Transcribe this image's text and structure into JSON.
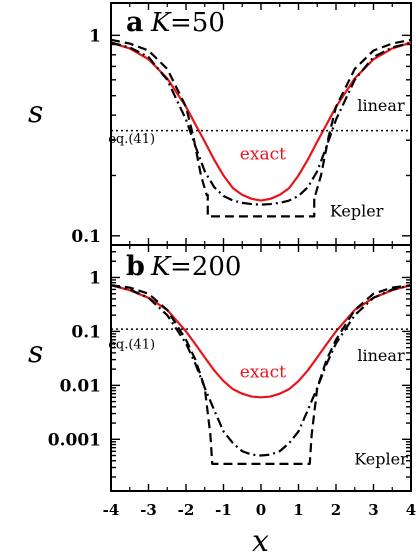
{
  "chart_data": [
    {
      "type": "line",
      "panel_letter": "a",
      "panel_k_var": "K",
      "panel_k_value": "=50",
      "xlabel": "x",
      "ylabel": "s",
      "y_scale": "log",
      "xlim": [
        -4,
        4
      ],
      "ylim": [
        0.09,
        1.45
      ],
      "yticks": [
        {
          "value": 1,
          "label": "1"
        },
        {
          "value": 0.1,
          "label": "0.1"
        }
      ],
      "series": [
        {
          "name": "exact",
          "color": "#e8141b",
          "style": "solid",
          "x": [
            -4,
            -3.5,
            -3,
            -2.5,
            -2,
            -1.75,
            -1.5,
            -1.25,
            -1,
            -0.75,
            -0.5,
            -0.25,
            0,
            0.25,
            0.5,
            0.75,
            1,
            1.25,
            1.5,
            1.75,
            2,
            2.5,
            3,
            3.5,
            4
          ],
          "y": [
            0.92,
            0.86,
            0.76,
            0.61,
            0.44,
            0.36,
            0.295,
            0.24,
            0.2,
            0.173,
            0.16,
            0.153,
            0.15,
            0.153,
            0.16,
            0.173,
            0.2,
            0.24,
            0.295,
            0.36,
            0.44,
            0.61,
            0.76,
            0.86,
            0.92
          ]
        },
        {
          "name": "linear",
          "color": "#000000",
          "style": "dashdot",
          "x": [
            -4,
            -3.5,
            -3,
            -2.5,
            -2,
            -1.75,
            -1.5,
            -1.25,
            -1,
            -0.75,
            -0.5,
            -0.25,
            0,
            0.25,
            0.5,
            0.75,
            1,
            1.25,
            1.5,
            1.75,
            2,
            2.5,
            3,
            3.5,
            4
          ],
          "y": [
            0.92,
            0.87,
            0.78,
            0.6,
            0.38,
            0.28,
            0.21,
            0.175,
            0.158,
            0.15,
            0.146,
            0.144,
            0.143,
            0.144,
            0.146,
            0.15,
            0.158,
            0.175,
            0.21,
            0.28,
            0.38,
            0.6,
            0.78,
            0.87,
            0.92
          ]
        },
        {
          "name": "Kepler",
          "color": "#000000",
          "style": "dashed",
          "x": [
            -4,
            -3.5,
            -3,
            -2.5,
            -2,
            -1.8,
            -1.6,
            -1.45,
            -1.42,
            -1.42,
            1.42,
            1.42,
            1.45,
            1.6,
            1.8,
            2,
            2.5,
            3,
            3.5,
            4
          ],
          "y": [
            0.95,
            0.91,
            0.84,
            0.68,
            0.44,
            0.31,
            0.2,
            0.16,
            0.16,
            0.125,
            0.125,
            0.16,
            0.16,
            0.2,
            0.31,
            0.44,
            0.68,
            0.84,
            0.91,
            0.95
          ]
        },
        {
          "name": "eq.(41)",
          "color": "#000000",
          "style": "dotted",
          "x": [
            -4,
            4
          ],
          "y": [
            0.335,
            0.335
          ]
        }
      ],
      "annotations": [
        {
          "text": "linear",
          "x": 3.2,
          "y": 0.42,
          "color": "#000000",
          "size": "normal"
        },
        {
          "text": "eq.(41)",
          "x": -3.45,
          "y": 0.29,
          "color": "#000000",
          "size": "small"
        },
        {
          "text": "exact",
          "x": 0.05,
          "y": 0.24,
          "color": "#e8141b",
          "size": "normal"
        },
        {
          "text": "Kepler",
          "x": 2.55,
          "y": 0.125,
          "color": "#000000",
          "size": "normal"
        }
      ]
    },
    {
      "type": "line",
      "panel_letter": "b",
      "panel_k_var": "K",
      "panel_k_value": "=200",
      "xlabel": "x",
      "ylabel": "s",
      "y_scale": "log",
      "xlim": [
        -4,
        4
      ],
      "ylim": [
        0.00011,
        4.0
      ],
      "xticks": [
        -4,
        -3,
        -2,
        -1,
        0,
        1,
        2,
        3,
        4
      ],
      "yticks": [
        {
          "value": 1,
          "label": "1"
        },
        {
          "value": 0.1,
          "label": "0.1"
        },
        {
          "value": 0.01,
          "label": "0.01"
        },
        {
          "value": 0.001,
          "label": "0.001"
        }
      ],
      "series": [
        {
          "name": "exact",
          "color": "#e8141b",
          "style": "solid",
          "x": [
            -4,
            -3.5,
            -3,
            -2.5,
            -2,
            -1.75,
            -1.5,
            -1.25,
            -1,
            -0.75,
            -0.5,
            -0.25,
            0,
            0.25,
            0.5,
            0.75,
            1,
            1.25,
            1.5,
            1.75,
            2,
            2.5,
            3,
            3.5,
            4
          ],
          "y": [
            0.72,
            0.58,
            0.42,
            0.25,
            0.1,
            0.058,
            0.033,
            0.019,
            0.012,
            0.0085,
            0.007,
            0.0062,
            0.006,
            0.0062,
            0.007,
            0.0085,
            0.012,
            0.019,
            0.033,
            0.058,
            0.1,
            0.25,
            0.42,
            0.58,
            0.72
          ]
        },
        {
          "name": "linear",
          "color": "#000000",
          "style": "dashdot",
          "x": [
            -4,
            -3.5,
            -3,
            -2.5,
            -2,
            -1.75,
            -1.5,
            -1.25,
            -1,
            -0.75,
            -0.5,
            -0.25,
            0,
            0.25,
            0.5,
            0.75,
            1,
            1.25,
            1.5,
            1.75,
            2,
            2.5,
            3,
            3.5,
            4
          ],
          "y": [
            0.72,
            0.6,
            0.42,
            0.2,
            0.06,
            0.025,
            0.009,
            0.0035,
            0.0014,
            0.00085,
            0.0006,
            0.00052,
            0.0005,
            0.00052,
            0.0006,
            0.00085,
            0.0014,
            0.0035,
            0.009,
            0.025,
            0.06,
            0.2,
            0.42,
            0.6,
            0.72
          ]
        },
        {
          "name": "Kepler",
          "color": "#000000",
          "style": "dashed",
          "x": [
            -4,
            -3.5,
            -3,
            -2.5,
            -2,
            -1.75,
            -1.5,
            -1.35,
            -1.3,
            -1.3,
            1.3,
            1.3,
            1.35,
            1.5,
            1.75,
            2,
            2.5,
            3,
            3.5,
            4
          ],
          "y": [
            0.72,
            0.65,
            0.5,
            0.25,
            0.07,
            0.03,
            0.009,
            0.0012,
            0.00035,
            0.00035,
            0.00035,
            0.00035,
            0.0012,
            0.009,
            0.03,
            0.07,
            0.25,
            0.5,
            0.65,
            0.72
          ]
        },
        {
          "name": "eq.(41)",
          "color": "#000000",
          "style": "dotted",
          "x": [
            -4,
            4
          ],
          "y": [
            0.11,
            0.11
          ]
        }
      ],
      "annotations": [
        {
          "text": "eq.(41)",
          "x": -3.45,
          "y": 0.048,
          "color": "#000000",
          "size": "small"
        },
        {
          "text": "linear",
          "x": 3.2,
          "y": 0.028,
          "color": "#000000",
          "size": "normal"
        },
        {
          "text": "exact",
          "x": 0.05,
          "y": 0.014,
          "color": "#e8141b",
          "size": "normal"
        },
        {
          "text": "Kepler",
          "x": 3.2,
          "y": 0.00034,
          "color": "#000000",
          "size": "normal"
        }
      ]
    }
  ]
}
